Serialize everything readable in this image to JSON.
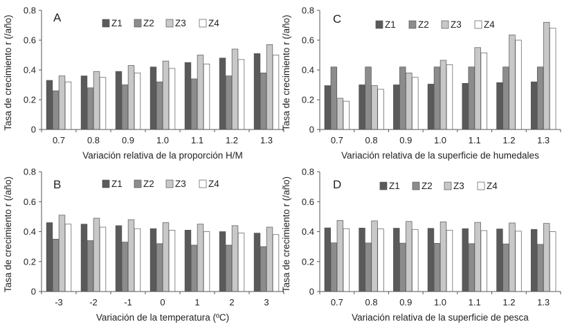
{
  "figure": {
    "colors": {
      "Z1": "#5a5a5a",
      "Z2": "#8c8c8c",
      "Z3": "#c8c8c8",
      "Z4": "#ffffff",
      "outline": "#555555",
      "axis": "#555555",
      "text": "#222222"
    }
  },
  "chart_data": [
    {
      "panel_label": "A",
      "type": "bar",
      "xlabel": "Variación relativa de la proporción H/M",
      "ylabel": "Tasa de crecimiento r (/año)",
      "ylim": [
        0,
        0.8
      ],
      "yticks": [
        "0",
        "0.2",
        "0.4",
        "0.6",
        "0.8"
      ],
      "categories": [
        "0.7",
        "0.8",
        "0.9",
        "1.0",
        "1.1",
        "1.2",
        "1.3"
      ],
      "grid": false,
      "legend_position": "top",
      "series": [
        {
          "name": "Z1",
          "values": [
            0.33,
            0.36,
            0.39,
            0.42,
            0.45,
            0.48,
            0.51
          ]
        },
        {
          "name": "Z2",
          "values": [
            0.26,
            0.28,
            0.3,
            0.32,
            0.34,
            0.36,
            0.38
          ]
        },
        {
          "name": "Z3",
          "values": [
            0.36,
            0.39,
            0.43,
            0.46,
            0.5,
            0.54,
            0.57
          ]
        },
        {
          "name": "Z4",
          "values": [
            0.32,
            0.35,
            0.38,
            0.41,
            0.44,
            0.47,
            0.5
          ]
        }
      ]
    },
    {
      "panel_label": "C",
      "type": "bar",
      "xlabel": "Variación relativa de la superficie de humedales",
      "ylabel": "Tasa de crecimiento r (/año)",
      "ylim": [
        0,
        0.8
      ],
      "yticks": [
        "0",
        "0.2",
        "0.4",
        "0.6",
        "0.8"
      ],
      "categories": [
        "0.7",
        "0.8",
        "0.9",
        "1.0",
        "1.1",
        "1.2",
        "1.3"
      ],
      "grid": false,
      "legend_position": "top",
      "series": [
        {
          "name": "Z1",
          "values": [
            0.295,
            0.3,
            0.3,
            0.305,
            0.31,
            0.315,
            0.32
          ]
        },
        {
          "name": "Z2",
          "values": [
            0.42,
            0.42,
            0.42,
            0.42,
            0.42,
            0.42,
            0.42
          ]
        },
        {
          "name": "Z3",
          "values": [
            0.21,
            0.295,
            0.38,
            0.465,
            0.55,
            0.635,
            0.72
          ]
        },
        {
          "name": "Z4",
          "values": [
            0.19,
            0.27,
            0.35,
            0.435,
            0.515,
            0.6,
            0.68
          ]
        }
      ]
    },
    {
      "panel_label": "B",
      "type": "bar",
      "xlabel": "Variación de la temperatura (ºC)",
      "ylabel": "Tasa de crecimiento r (/año)",
      "ylim": [
        0,
        0.8
      ],
      "yticks": [
        "0",
        "0.2",
        "0.4",
        "0.6",
        "0.8"
      ],
      "categories": [
        "-3",
        "-2",
        "-1",
        "0",
        "1",
        "2",
        "3"
      ],
      "grid": false,
      "legend_position": "top",
      "series": [
        {
          "name": "Z1",
          "values": [
            0.46,
            0.45,
            0.44,
            0.42,
            0.41,
            0.4,
            0.39
          ]
        },
        {
          "name": "Z2",
          "values": [
            0.35,
            0.34,
            0.33,
            0.32,
            0.31,
            0.31,
            0.3
          ]
        },
        {
          "name": "Z3",
          "values": [
            0.51,
            0.49,
            0.48,
            0.46,
            0.45,
            0.44,
            0.43
          ]
        },
        {
          "name": "Z4",
          "values": [
            0.45,
            0.43,
            0.42,
            0.41,
            0.4,
            0.39,
            0.38
          ]
        }
      ]
    },
    {
      "panel_label": "D",
      "type": "bar",
      "xlabel": "Variación relativa de la superficie de pesca",
      "ylabel": "Tasa de crecimiento r (/año)",
      "ylim": [
        0,
        0.8
      ],
      "yticks": [
        "0",
        "0.2",
        "0.4",
        "0.6",
        "0.8"
      ],
      "categories": [
        "0.7",
        "0.8",
        "0.9",
        "1.0",
        "1.1",
        "1.2",
        "1.3"
      ],
      "grid": false,
      "legend_position": "top",
      "series": [
        {
          "name": "Z1",
          "values": [
            0.425,
            0.424,
            0.423,
            0.422,
            0.42,
            0.418,
            0.415
          ]
        },
        {
          "name": "Z2",
          "values": [
            0.325,
            0.324,
            0.323,
            0.322,
            0.32,
            0.318,
            0.315
          ]
        },
        {
          "name": "Z3",
          "values": [
            0.475,
            0.472,
            0.468,
            0.465,
            0.462,
            0.458,
            0.455
          ]
        },
        {
          "name": "Z4",
          "values": [
            0.42,
            0.418,
            0.415,
            0.41,
            0.407,
            0.403,
            0.4
          ]
        }
      ]
    }
  ]
}
